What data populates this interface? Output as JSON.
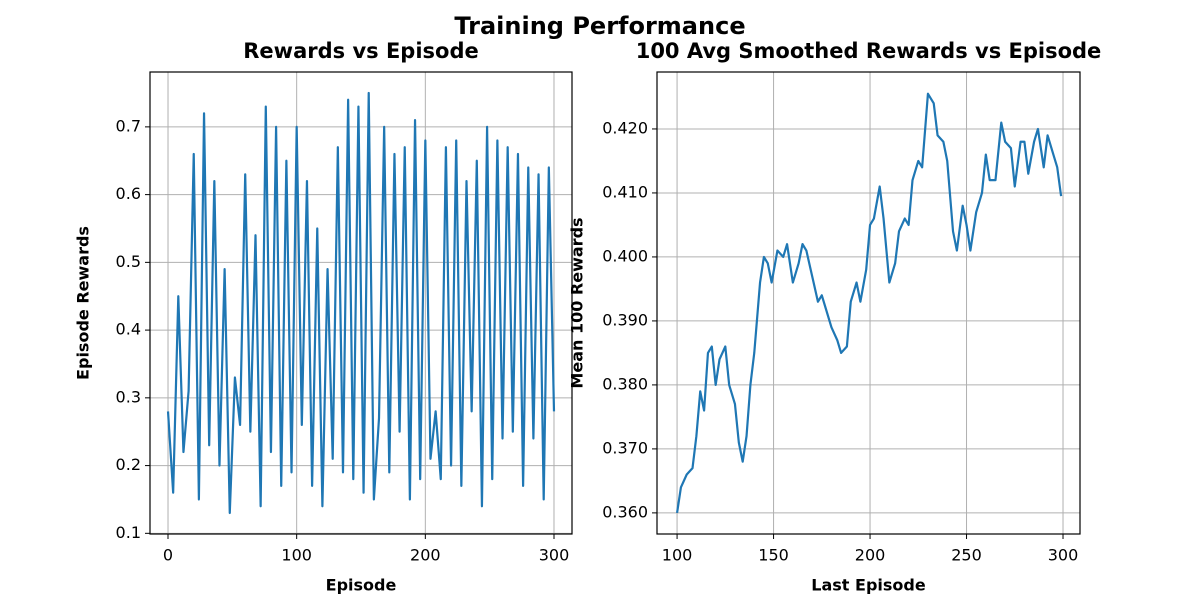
{
  "title": "Training Performance",
  "chart_data": [
    {
      "type": "line",
      "title": "Rewards vs Episode",
      "xlabel": "Episode",
      "ylabel": "Episode Rewards",
      "color": "#1f77b4",
      "grid": true,
      "xlim": [
        -14,
        314
      ],
      "ylim": [
        0.099,
        0.781
      ],
      "xticks": [
        0,
        100,
        200,
        300
      ],
      "yticks": [
        0.1,
        0.2,
        0.3,
        0.4,
        0.5,
        0.6,
        0.7
      ],
      "x": [
        0,
        4,
        8,
        12,
        16,
        20,
        24,
        28,
        32,
        36,
        40,
        44,
        48,
        52,
        56,
        60,
        64,
        68,
        72,
        76,
        80,
        84,
        88,
        92,
        96,
        100,
        104,
        108,
        112,
        116,
        120,
        124,
        128,
        132,
        136,
        140,
        144,
        148,
        152,
        156,
        160,
        164,
        168,
        172,
        176,
        180,
        184,
        188,
        192,
        196,
        200,
        204,
        208,
        212,
        216,
        220,
        224,
        228,
        232,
        236,
        240,
        244,
        248,
        252,
        256,
        260,
        264,
        268,
        272,
        276,
        280,
        284,
        288,
        292,
        296,
        300
      ],
      "values": [
        0.28,
        0.16,
        0.45,
        0.22,
        0.31,
        0.66,
        0.15,
        0.72,
        0.23,
        0.62,
        0.2,
        0.49,
        0.13,
        0.33,
        0.26,
        0.63,
        0.25,
        0.54,
        0.14,
        0.73,
        0.22,
        0.7,
        0.17,
        0.65,
        0.19,
        0.7,
        0.26,
        0.62,
        0.17,
        0.55,
        0.14,
        0.49,
        0.21,
        0.67,
        0.19,
        0.74,
        0.18,
        0.73,
        0.16,
        0.75,
        0.15,
        0.27,
        0.7,
        0.19,
        0.66,
        0.25,
        0.67,
        0.15,
        0.71,
        0.18,
        0.68,
        0.21,
        0.28,
        0.18,
        0.67,
        0.2,
        0.68,
        0.17,
        0.62,
        0.28,
        0.65,
        0.14,
        0.7,
        0.18,
        0.68,
        0.24,
        0.67,
        0.25,
        0.66,
        0.17,
        0.64,
        0.24,
        0.63,
        0.15,
        0.64,
        0.28
      ]
    },
    {
      "type": "line",
      "title": "100 Avg Smoothed Rewards vs Episode",
      "xlabel": "Last Episode",
      "ylabel": "Mean 100 Rewards",
      "color": "#1f77b4",
      "grid": true,
      "xlim": [
        89.6,
        308.8
      ],
      "ylim": [
        0.3567,
        0.4289
      ],
      "xticks": [
        100,
        150,
        200,
        250,
        300
      ],
      "yticks": [
        {
          "value": 0.36,
          "label": "0.360"
        },
        {
          "value": 0.37,
          "label": "0.370"
        },
        {
          "value": 0.38,
          "label": "0.380"
        },
        {
          "value": 0.39,
          "label": "0.390"
        },
        {
          "value": 0.4,
          "label": "0.400"
        },
        {
          "value": 0.41,
          "label": "0.410"
        },
        {
          "value": 0.42,
          "label": "0.420"
        }
      ],
      "x": [
        100,
        102,
        105,
        108,
        110,
        112,
        114,
        116,
        118,
        120,
        122,
        125,
        127,
        130,
        132,
        134,
        136,
        138,
        140,
        143,
        145,
        147,
        149,
        152,
        155,
        157,
        160,
        163,
        165,
        167,
        170,
        173,
        175,
        177,
        180,
        183,
        185,
        188,
        190,
        193,
        195,
        198,
        200,
        202,
        205,
        207,
        210,
        213,
        215,
        218,
        220,
        222,
        225,
        227,
        230,
        233,
        235,
        238,
        240,
        243,
        245,
        248,
        250,
        252,
        255,
        258,
        260,
        262,
        265,
        268,
        270,
        273,
        275,
        278,
        280,
        282,
        285,
        287,
        290,
        292,
        295,
        297,
        299
      ],
      "values": [
        0.36,
        0.364,
        0.366,
        0.367,
        0.372,
        0.379,
        0.376,
        0.385,
        0.386,
        0.38,
        0.384,
        0.386,
        0.38,
        0.377,
        0.371,
        0.368,
        0.372,
        0.38,
        0.385,
        0.396,
        0.4,
        0.399,
        0.396,
        0.401,
        0.4,
        0.402,
        0.396,
        0.399,
        0.402,
        0.401,
        0.397,
        0.393,
        0.394,
        0.392,
        0.389,
        0.387,
        0.385,
        0.386,
        0.393,
        0.396,
        0.393,
        0.398,
        0.405,
        0.406,
        0.411,
        0.406,
        0.396,
        0.399,
        0.404,
        0.406,
        0.405,
        0.412,
        0.415,
        0.414,
        0.4255,
        0.424,
        0.419,
        0.418,
        0.415,
        0.404,
        0.401,
        0.408,
        0.405,
        0.401,
        0.407,
        0.41,
        0.416,
        0.412,
        0.412,
        0.421,
        0.418,
        0.417,
        0.411,
        0.418,
        0.418,
        0.413,
        0.418,
        0.42,
        0.414,
        0.419,
        0.416,
        0.414,
        0.4095
      ]
    }
  ]
}
